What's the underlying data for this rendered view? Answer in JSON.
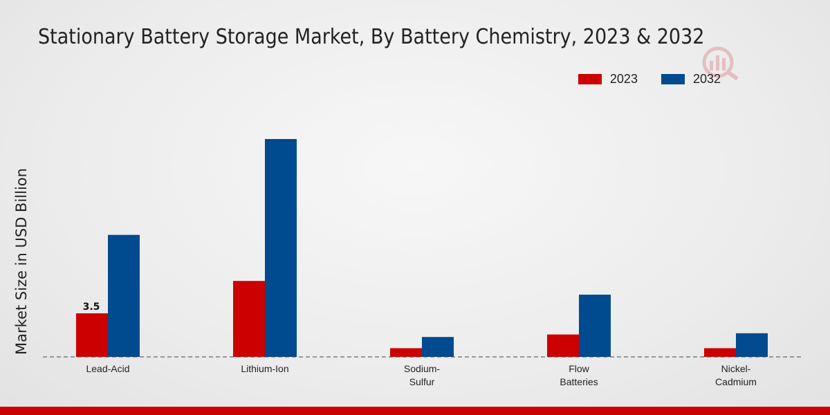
{
  "chart_data": {
    "type": "bar",
    "title": "Stationary Battery Storage Market, By Battery Chemistry, 2023 & 2032",
    "xlabel": "",
    "ylabel": "Market Size in USD Billion",
    "categories": [
      [
        "Lead-Acid"
      ],
      [
        "Lithium-Ion"
      ],
      [
        "Sodium-",
        "Sulfur"
      ],
      [
        "Flow",
        "Batteries"
      ],
      [
        "Nickel-",
        "Cadmium"
      ]
    ],
    "series": [
      {
        "name": "2023",
        "color": "#cc0000",
        "values": [
          3.5,
          6.1,
          0.7,
          1.8,
          0.7
        ]
      },
      {
        "name": "2032",
        "color": "#004a8f",
        "values": [
          9.8,
          17.5,
          1.6,
          5.0,
          1.9
        ]
      }
    ],
    "data_labels": [
      {
        "series": 0,
        "index": 0,
        "text": "3.5"
      }
    ],
    "ylim": [
      0,
      22
    ],
    "grid": false,
    "legend_position": "top-right"
  },
  "footer": {
    "color": "#cc0000"
  }
}
